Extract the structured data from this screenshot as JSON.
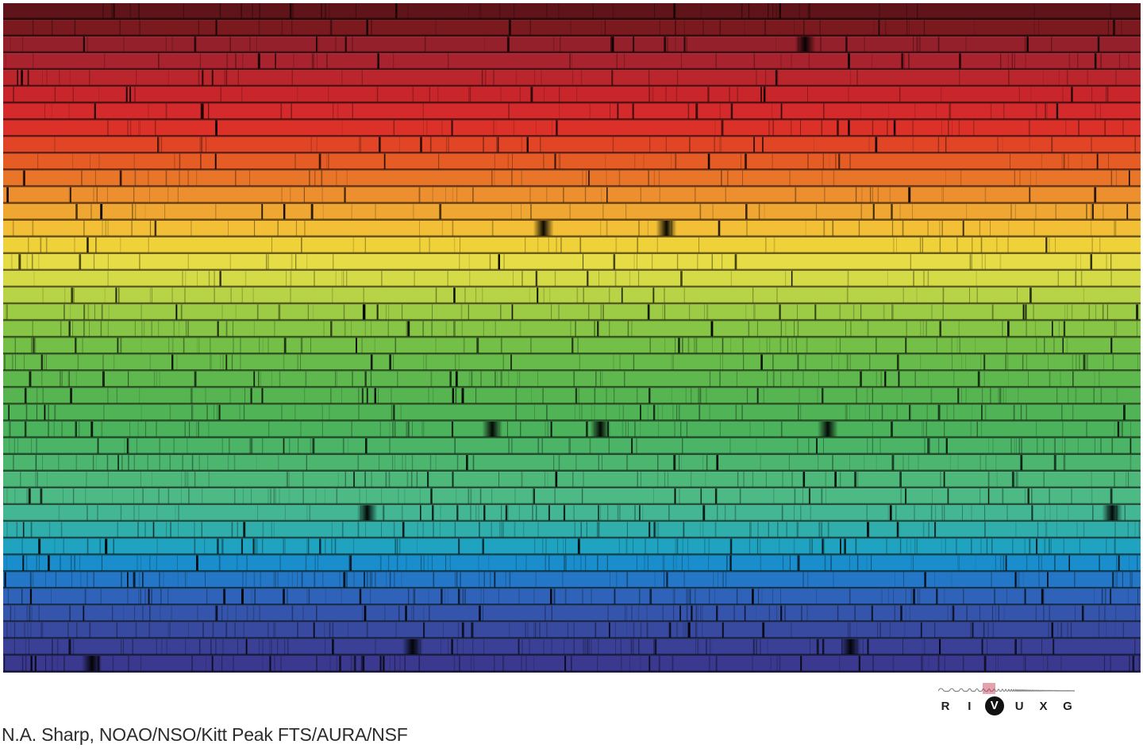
{
  "credit": "N.A. Sharp, NOAO/NSO/Kitt Peak FTS/AURA/NSF",
  "band_icon": {
    "letters": [
      "R",
      "I",
      "V",
      "U",
      "X",
      "G"
    ],
    "active": "V",
    "icon": "electromagnetic-wave-icon"
  },
  "spectrum": {
    "rows": 40,
    "colors": [
      "#5e1418",
      "#7a1a1f",
      "#93202a",
      "#a8232d",
      "#bb252c",
      "#c9262b",
      "#d42a2b",
      "#dc3129",
      "#e14526",
      "#e55c25",
      "#e97528",
      "#ed8f2e",
      "#f0a732",
      "#f2bf36",
      "#efd13a",
      "#e6dc45",
      "#d5da47",
      "#b9d346",
      "#9ccb45",
      "#86c545",
      "#74bf48",
      "#67bb4a",
      "#5eb84d",
      "#56b550",
      "#50b355",
      "#4cb35d",
      "#4bb466",
      "#4cb66f",
      "#4db87a",
      "#4dba86",
      "#43b694",
      "#30aeac",
      "#1fa3c0",
      "#1a8ecd",
      "#2377c6",
      "#2f63b9",
      "#3555ac",
      "#3849a0",
      "#3a4096",
      "#3b398f"
    ],
    "strong_lines": [
      [
        2,
        0.705
      ],
      [
        13,
        0.475
      ],
      [
        13,
        0.583
      ],
      [
        25,
        0.43
      ],
      [
        25,
        0.525
      ],
      [
        25,
        0.725
      ],
      [
        30,
        0.32
      ],
      [
        30,
        0.975
      ],
      [
        38,
        0.36
      ],
      [
        38,
        0.745
      ],
      [
        39,
        0.078
      ]
    ]
  }
}
